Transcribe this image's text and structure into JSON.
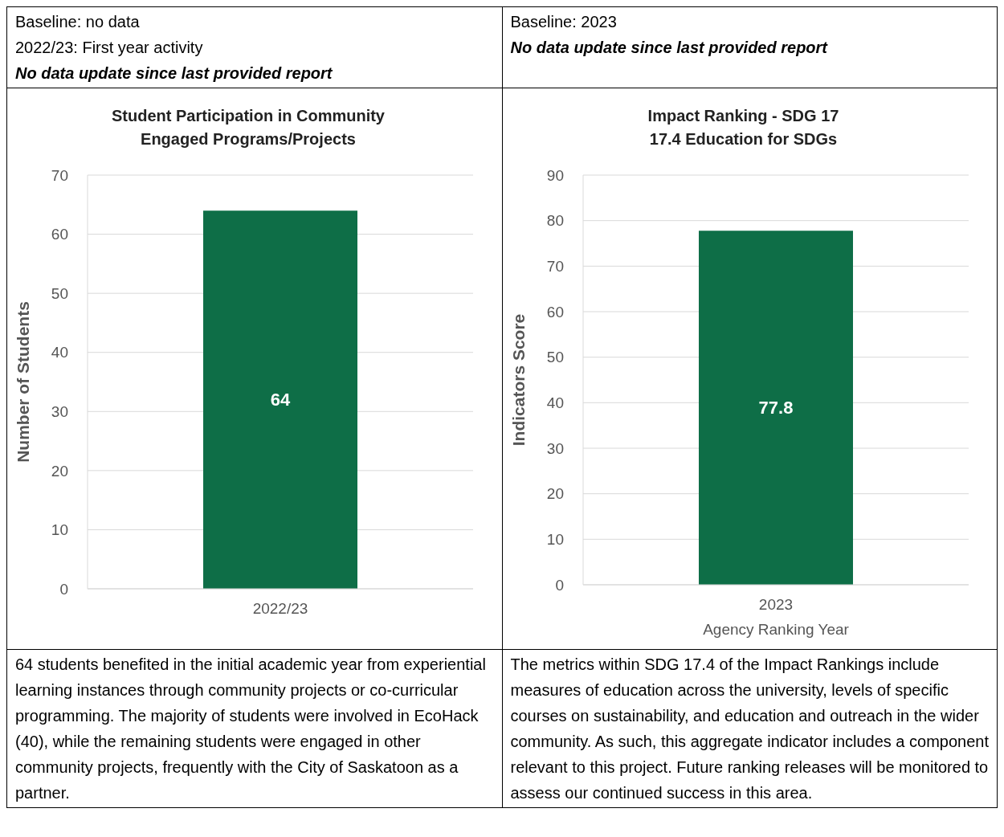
{
  "chart_data": [
    {
      "type": "bar",
      "title": "Student Participation in Community\nEngaged Programs/Projects",
      "ylabel": "Number of Students",
      "categories": [
        "2022/23"
      ],
      "values": [
        64
      ],
      "color": "#0e6e47",
      "ylim": [
        0,
        70
      ],
      "yticks": [
        0,
        10,
        20,
        30,
        40,
        50,
        60,
        70
      ],
      "grid": "y",
      "data_labels": true,
      "annotations": [
        "Baseline: no data",
        "2022/23: First year activity",
        "No data update since last provided report",
        "64 students benefited in the initial academic year from experiential learning instances through community projects or co-curricular programming. The majority of students were involved in EcoHack (40), while the remaining students were engaged in other community projects, frequently with the City of Saskatoon as a partner."
      ]
    },
    {
      "type": "bar",
      "title": "Impact Ranking - SDG 17\n17.4 Education for SDGs",
      "ylabel": "Indicators Score",
      "xlabel": "Agency Ranking Year",
      "categories": [
        "2023"
      ],
      "values": [
        77.8
      ],
      "color": "#0e6e47",
      "ylim": [
        0,
        90
      ],
      "yticks": [
        0,
        10,
        20,
        30,
        40,
        50,
        60,
        70,
        80,
        90
      ],
      "grid": "y",
      "data_labels": true,
      "annotations": [
        "Baseline: 2023",
        "No data update since last provided report",
        "The metrics within SDG 17.4 of the Impact Rankings include measures of education across the university, levels of specific courses on sustainability, and education and outreach in the wider community. As such, this aggregate indicator includes a component relevant to this project. Future ranking releases will be monitored to assess our continued success in this area."
      ]
    }
  ]
}
